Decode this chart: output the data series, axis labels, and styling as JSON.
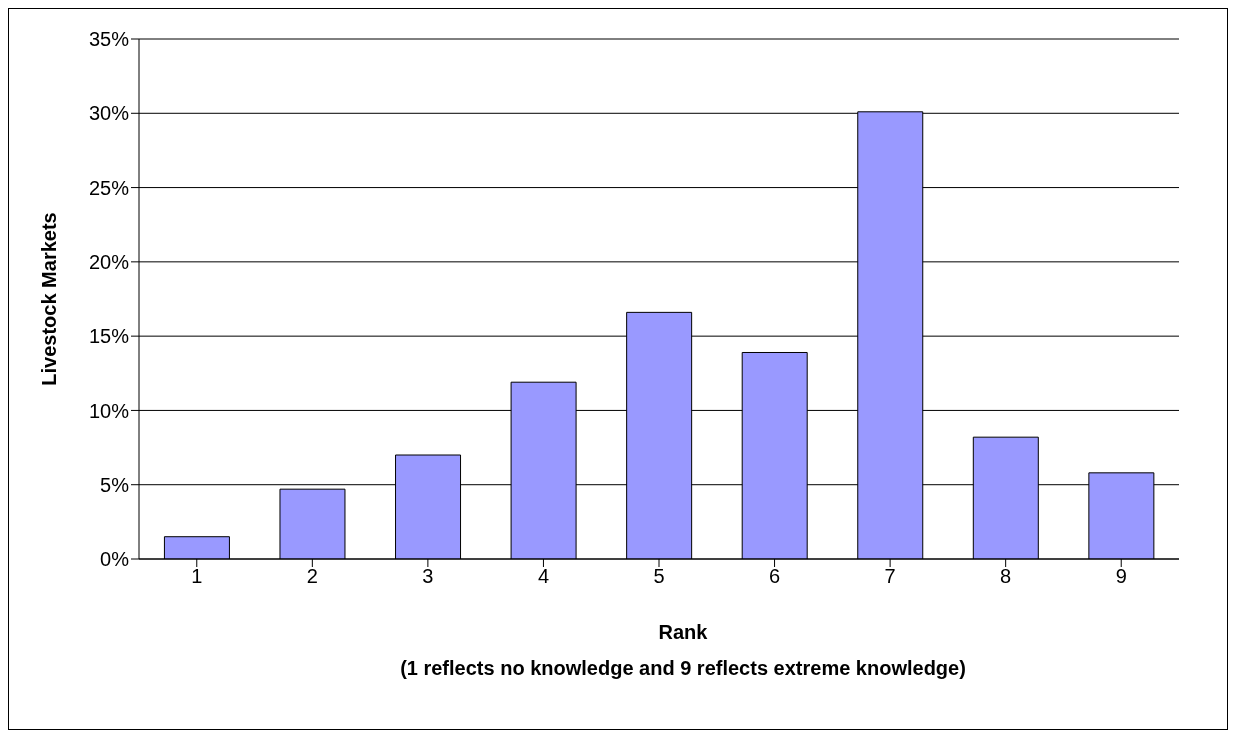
{
  "chart_data": {
    "type": "bar",
    "xlabel": "Rank\n(1 reflects no knowledge and 9 reflects extreme knowledge)",
    "ylabel": "Livestock Markets",
    "categories": [
      "1",
      "2",
      "3",
      "4",
      "5",
      "6",
      "7",
      "8",
      "9"
    ],
    "values": [
      1.5,
      4.7,
      7.0,
      11.9,
      16.6,
      13.9,
      30.1,
      8.2,
      5.8
    ],
    "color": "#9999ff",
    "ylim": [
      0,
      35
    ],
    "yticks": [
      {
        "value": 0,
        "label": "0%"
      },
      {
        "value": 5,
        "label": "5%"
      },
      {
        "value": 10,
        "label": "10%"
      },
      {
        "value": 15,
        "label": "15%"
      },
      {
        "value": 20,
        "label": "20%"
      },
      {
        "value": 25,
        "label": "25%"
      },
      {
        "value": 30,
        "label": "30%"
      },
      {
        "value": 35,
        "label": "35%"
      }
    ],
    "grid": "y",
    "legend": false
  }
}
